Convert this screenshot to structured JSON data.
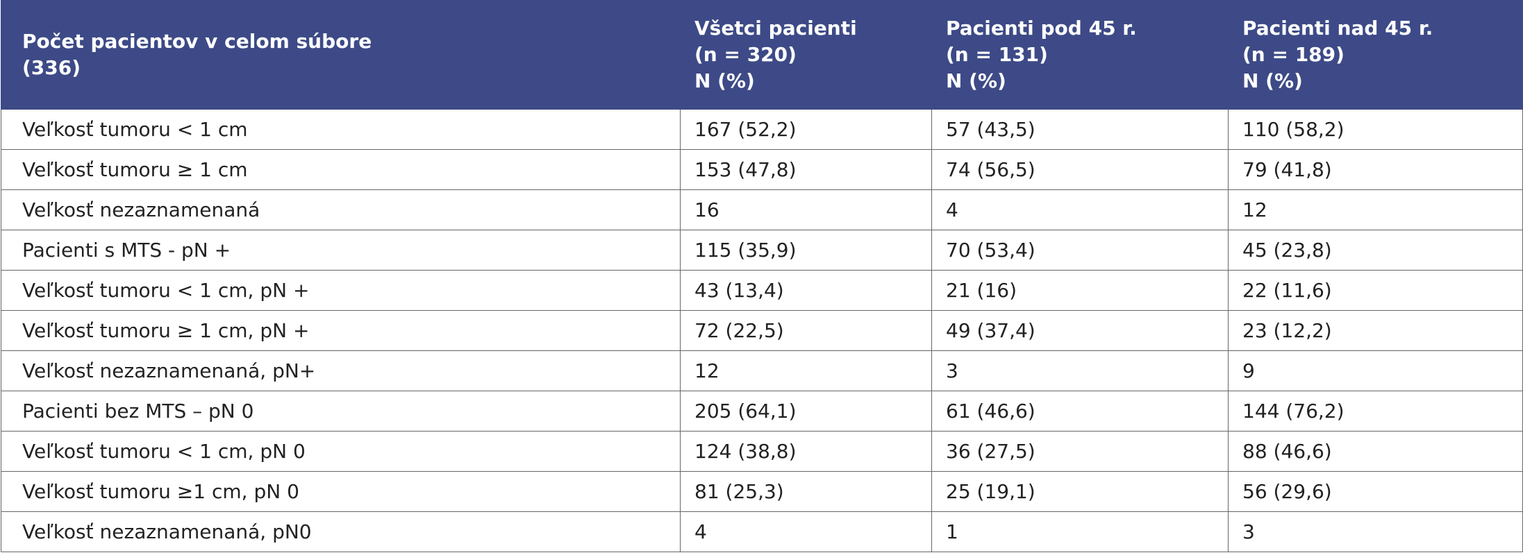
{
  "header": [
    [
      "Počet pacientov v celom súbore",
      "(336)"
    ],
    [
      "Všetci pacienti",
      "(n = 320)",
      "N (%)"
    ],
    [
      "Pacienti pod 45 r.",
      "(n = 131)",
      "N (%)"
    ],
    [
      "Pacienti nad 45 r.",
      "(n = 189)",
      "N (%)"
    ]
  ],
  "rows": [
    [
      "Veľkosť tumoru < 1 cm",
      "167 (52,2)",
      "57 (43,5)",
      "110 (58,2)"
    ],
    [
      "Veľkosť tumoru ≥ 1 cm",
      "153 (47,8)",
      "74 (56,5)",
      "79 (41,8)"
    ],
    [
      "Veľkosť nezaznamenaná",
      "16",
      "4",
      "12"
    ],
    [
      "Pacienti s MTS - pN +",
      "115 (35,9)",
      "70 (53,4)",
      "45 (23,8)"
    ],
    [
      "Veľkosť tumoru < 1 cm, pN +",
      "43 (13,4)",
      "21 (16)",
      "22 (11,6)"
    ],
    [
      "Veľkosť tumoru ≥ 1 cm, pN +",
      "72 (22,5)",
      "49 (37,4)",
      "23 (12,2)"
    ],
    [
      "Veľkosť nezaznamenaná, pN+",
      "12",
      "3",
      "9"
    ],
    [
      "Pacienti bez MTS – pN 0",
      "205 (64,1)",
      "61 (46,6)",
      "144 (76,2)"
    ],
    [
      "Veľkosť tumoru < 1 cm, pN 0",
      "124 (38,8)",
      "36 (27,5)",
      "88 (46,6)"
    ],
    [
      "Veľkosť tumoru ≥1 cm, pN 0",
      "81 (25,3)",
      "25 (19,1)",
      "56 (29,6)"
    ],
    [
      "Veľkosť nezaznamenaná, pN0",
      "4",
      "1",
      "3"
    ]
  ]
}
